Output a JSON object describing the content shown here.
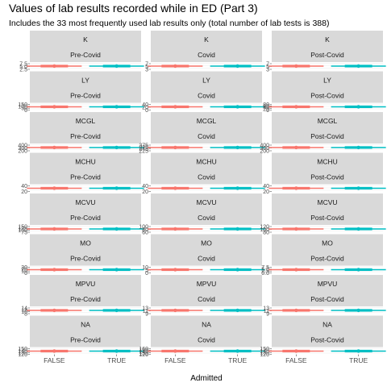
{
  "title": "Values of lab results recorded while in ED (Part 3)",
  "subtitle": "Includes the 33 most frequently used lab results only (total number of lab tests is 388)",
  "chart_data": {
    "type": "boxplot",
    "xlabel": "Admitted",
    "categories": [
      "FALSE",
      "TRUE"
    ],
    "periods": [
      "Pre-Covid",
      "Covid",
      "Post-Covid"
    ],
    "tests": [
      "K",
      "LY",
      "MCGL",
      "MCHU",
      "MCVU",
      "MO",
      "MPVU",
      "NA"
    ],
    "colors": {
      "FALSE": "#F8766D",
      "TRUE": "#00BFC4"
    },
    "grid": true,
    "legend": "none",
    "facets": [
      {
        "test": "K",
        "period": "Pre-Covid",
        "y_ticks": [
          "7.5",
          "5.0",
          "2.5"
        ]
      },
      {
        "test": "K",
        "period": "Covid",
        "y_ticks": [
          "7",
          "5",
          "3"
        ]
      },
      {
        "test": "K",
        "period": "Post-Covid",
        "y_ticks": [
          "7",
          "5",
          "3"
        ]
      },
      {
        "test": "LY",
        "period": "Pre-Covid",
        "y_ticks": [
          "150",
          "100",
          "50",
          "0"
        ]
      },
      {
        "test": "LY",
        "period": "Covid",
        "y_ticks": [
          "40",
          "20",
          "0"
        ]
      },
      {
        "test": "LY",
        "period": "Post-Covid",
        "y_ticks": [
          "80",
          "60",
          "40",
          "20",
          "0"
        ]
      },
      {
        "test": "MCGL",
        "period": "Pre-Covid",
        "y_ticks": [
          "400",
          "300",
          "200"
        ]
      },
      {
        "test": "MCGL",
        "period": "Covid",
        "y_ticks": [
          "375",
          "325",
          "275",
          "225"
        ]
      },
      {
        "test": "MCGL",
        "period": "Post-Covid",
        "y_ticks": [
          "400",
          "300",
          "200"
        ]
      },
      {
        "test": "MCHU",
        "period": "Pre-Covid",
        "y_ticks": [
          "40",
          "20"
        ]
      },
      {
        "test": "MCHU",
        "period": "Covid",
        "y_ticks": [
          "40",
          "20"
        ]
      },
      {
        "test": "MCHU",
        "period": "Post-Covid",
        "y_ticks": [
          "40",
          "20"
        ]
      },
      {
        "test": "MCVU",
        "period": "Pre-Covid",
        "y_ticks": [
          "150",
          "125",
          "100",
          "75"
        ]
      },
      {
        "test": "MCVU",
        "period": "Covid",
        "y_ticks": [
          "100",
          "80",
          "60"
        ]
      },
      {
        "test": "MCVU",
        "period": "Post-Covid",
        "y_ticks": [
          "120",
          "100",
          "80"
        ]
      },
      {
        "test": "MO",
        "period": "Pre-Covid",
        "y_ticks": [
          "30",
          "20",
          "10",
          "0"
        ]
      },
      {
        "test": "MO",
        "period": "Covid",
        "y_ticks": [
          "10",
          "5",
          "0"
        ]
      },
      {
        "test": "MO",
        "period": "Post-Covid",
        "y_ticks": [
          "7.5",
          "5.0",
          "2.5",
          "0.0"
        ]
      },
      {
        "test": "MPVU",
        "period": "Pre-Covid",
        "y_ticks": [
          "14",
          "12",
          "10",
          "8"
        ]
      },
      {
        "test": "MPVU",
        "period": "Covid",
        "y_ticks": [
          "13",
          "11",
          "9"
        ]
      },
      {
        "test": "MPVU",
        "period": "Post-Covid",
        "y_ticks": [
          "13",
          "11",
          "9"
        ]
      },
      {
        "test": "NA",
        "period": "Pre-Covid",
        "y_ticks": [
          "150",
          "140",
          "130",
          "120"
        ]
      },
      {
        "test": "NA",
        "period": "Covid",
        "y_ticks": [
          "160",
          "150",
          "140",
          "130",
          "120"
        ]
      },
      {
        "test": "NA",
        "period": "Post-Covid",
        "y_ticks": [
          "150",
          "140",
          "130",
          "120"
        ]
      }
    ]
  }
}
